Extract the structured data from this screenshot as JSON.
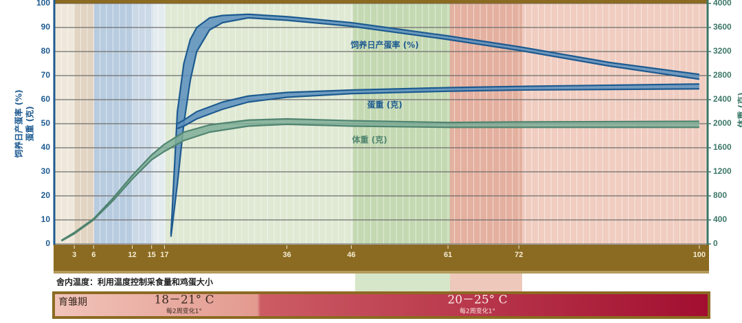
{
  "chart_data": {
    "type": "band",
    "y_label_lines": [
      "饲养日产蛋率 (%)",
      "蛋重 (克)"
    ],
    "y2_label": "体重 (克)",
    "xlim": [
      0,
      101.3
    ],
    "xticks": [
      3,
      6,
      12,
      15,
      17,
      36,
      46,
      61,
      72,
      100
    ],
    "ylim": [
      0,
      100
    ],
    "yticks": [
      0,
      10,
      20,
      30,
      40,
      50,
      60,
      70,
      80,
      90,
      100
    ],
    "y2lim": [
      0,
      4000
    ],
    "y2ticks": [
      0,
      400,
      800,
      1200,
      1600,
      2000,
      2400,
      2800,
      3200,
      3600,
      4000
    ],
    "grid": true,
    "series": [
      {
        "name": "饲养日产蛋率 (%)",
        "color": "#1d5a90",
        "fill": "#5b8fbd",
        "x": [
          18,
          19,
          20,
          21,
          22,
          24,
          26,
          30,
          36,
          46,
          61,
          72,
          86,
          100
        ],
        "low": [
          3,
          25,
          50,
          68,
          80,
          89,
          92,
          94,
          93,
          90.5,
          85,
          80.5,
          74,
          68.5
        ],
        "high": [
          4,
          55,
          75,
          85,
          90,
          94,
          95,
          95.5,
          94.5,
          92,
          86.5,
          82,
          75.5,
          70.5
        ]
      },
      {
        "name": "蛋重 (克)",
        "color": "#1d5a90",
        "fill": "#5b8fbd",
        "x": [
          19,
          20,
          22,
          26,
          30,
          36,
          46,
          61,
          72,
          100
        ],
        "low": [
          48,
          49,
          52,
          56,
          59,
          61,
          62.5,
          63.5,
          64,
          64.5
        ],
        "high": [
          50,
          51.5,
          55,
          59,
          61.5,
          63,
          64,
          65,
          65.5,
          66.5
        ]
      },
      {
        "name": "体重 (克)",
        "color": "#4f8470",
        "fill": "#7fae98",
        "axis": "y2",
        "x": [
          1,
          3,
          6,
          9,
          12,
          15,
          17,
          20,
          24,
          30,
          36,
          46,
          61,
          72,
          100
        ],
        "low": [
          50,
          170,
          400,
          720,
          1080,
          1400,
          1540,
          1720,
          1860,
          1960,
          1990,
          1960,
          1940,
          1940,
          1940
        ],
        "high": [
          60,
          190,
          420,
          760,
          1140,
          1480,
          1660,
          1860,
          1980,
          2060,
          2080,
          2050,
          2020,
          2030,
          2040
        ]
      }
    ]
  },
  "temperature": {
    "title": "舍内温度：利用温度控制采食量和鸡蛋大小",
    "phase": "育雏期",
    "ranges": [
      {
        "label": "18－21° C",
        "note": "每2周变化1°"
      },
      {
        "label": "20－25° C",
        "note": "每2周变化1°"
      }
    ]
  }
}
